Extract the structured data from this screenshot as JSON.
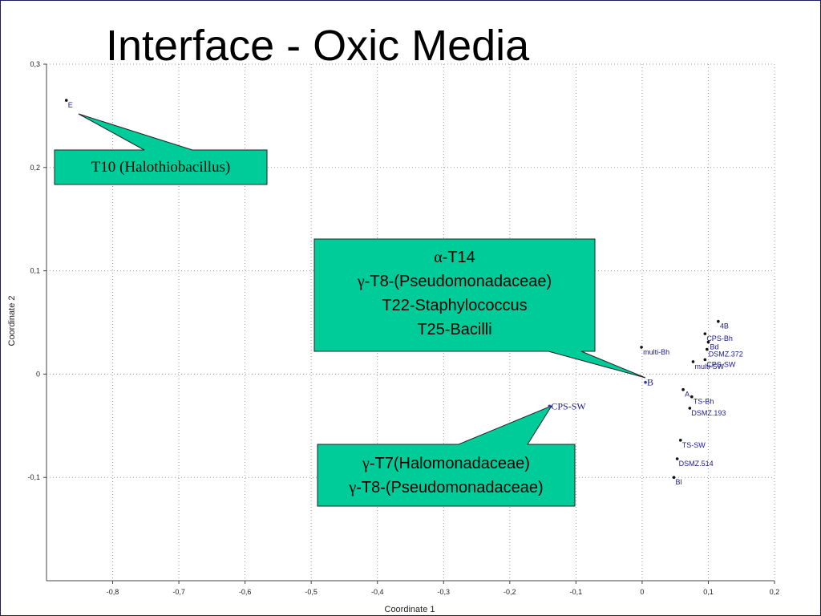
{
  "slide": {
    "title": "Interface - Oxic Media",
    "colors": {
      "frame": "#1c1f5c",
      "callout_fill": "#00cc99",
      "point_label": "#1a1a8c"
    }
  },
  "chart_data": {
    "type": "scatter",
    "xlabel": "Coordinate 1",
    "ylabel": "Coordinate 2",
    "xlim": [
      -0.9,
      0.2
    ],
    "ylim": [
      -0.2,
      0.3
    ],
    "xticks": [
      "-0,8",
      "-0,7",
      "-0,6",
      "-0,5",
      "-0,4",
      "-0,3",
      "-0,2",
      "-0,1",
      "0",
      "0,1",
      "0,2"
    ],
    "xtick_values": [
      -0.8,
      -0.7,
      -0.6,
      -0.5,
      -0.4,
      -0.3,
      -0.2,
      -0.1,
      0,
      0.1,
      0.2
    ],
    "yticks": [
      "0,3",
      "0,2",
      "0,1",
      "0",
      "-0,1"
    ],
    "ytick_values": [
      0.3,
      0.2,
      0.1,
      0,
      -0.1
    ],
    "grid": true,
    "points": [
      {
        "label": "E",
        "x": -0.87,
        "y": 0.265
      },
      {
        "label": "4B",
        "x": 0.115,
        "y": 0.051
      },
      {
        "label": "CPS-Bh",
        "x": 0.095,
        "y": 0.039
      },
      {
        "label": "Bd",
        "x": 0.1,
        "y": 0.031
      },
      {
        "label": "DSMZ.372",
        "x": 0.098,
        "y": 0.024
      },
      {
        "label": "multi-Bh",
        "x": -0.001,
        "y": 0.026
      },
      {
        "label": "CPS-SW",
        "x": 0.095,
        "y": 0.014
      },
      {
        "label": "multi-SW",
        "x": 0.077,
        "y": 0.012
      },
      {
        "label": "B",
        "x": 0.005,
        "y": -0.008
      },
      {
        "label": "A",
        "x": 0.062,
        "y": -0.015
      },
      {
        "label": "TS-Bh",
        "x": 0.075,
        "y": -0.022
      },
      {
        "label": "DSMZ.193",
        "x": 0.072,
        "y": -0.033
      },
      {
        "label": "CPS-SW",
        "x": -0.14,
        "y": -0.031
      },
      {
        "label": "TS-SW",
        "x": 0.058,
        "y": -0.064
      },
      {
        "label": "DSMZ.514",
        "x": 0.053,
        "y": -0.082
      },
      {
        "label": "Bl",
        "x": 0.048,
        "y": -0.1
      }
    ]
  },
  "callouts": {
    "t10": {
      "lines": [
        "T10 (Halothiobacillus)"
      ]
    },
    "alpha": {
      "greek": [
        "α",
        "γ",
        "",
        ""
      ],
      "rest": [
        "-T14",
        "-T8-(Pseudomonadaceae)",
        "T22-Staphylococcus",
        "T25-Bacilli"
      ]
    },
    "gamma": {
      "greek": [
        "γ",
        "γ"
      ],
      "rest": [
        "-T7(Halomonadaceae)",
        "-T8-(Pseudomonadaceae)"
      ]
    }
  }
}
